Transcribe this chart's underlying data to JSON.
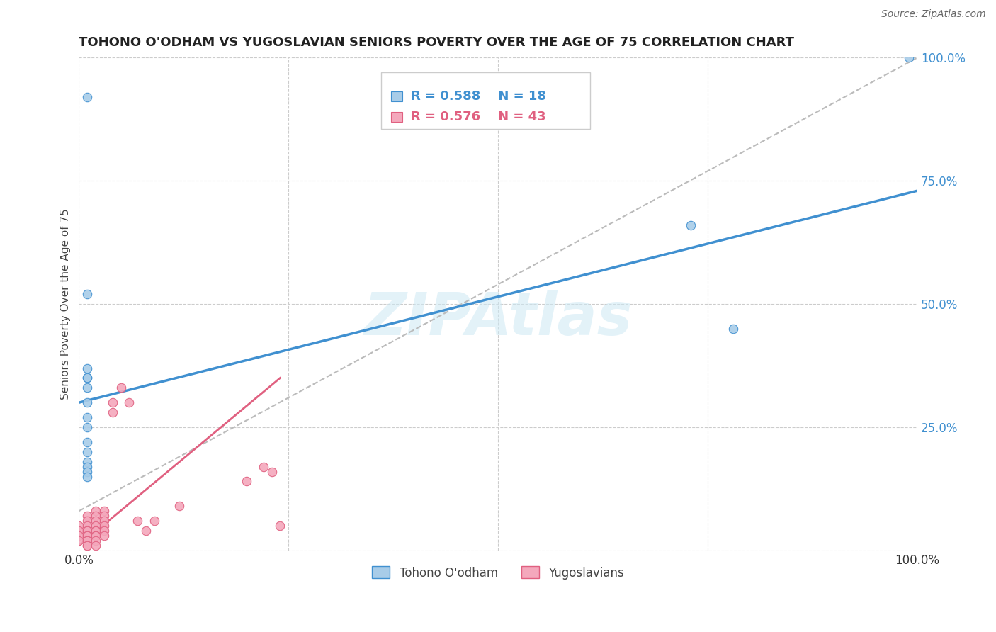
{
  "title": "TOHONO O'ODHAM VS YUGOSLAVIAN SENIORS POVERTY OVER THE AGE OF 75 CORRELATION CHART",
  "source": "Source: ZipAtlas.com",
  "ylabel": "Seniors Poverty Over the Age of 75",
  "watermark": "ZIPAtlas",
  "legend_blue_R": "R = 0.588",
  "legend_blue_N": "N = 18",
  "legend_pink_R": "R = 0.576",
  "legend_pink_N": "N = 43",
  "legend_blue_label": "Tohono O'odham",
  "legend_pink_label": "Yugoslavians",
  "xlim": [
    0,
    1
  ],
  "ylim": [
    0,
    1
  ],
  "blue_color": "#a8cce8",
  "pink_color": "#f4a8bc",
  "trendline_blue_color": "#4090d0",
  "trendline_pink_color": "#e06080",
  "trendline_diagonal_color": "#bbbbbb",
  "blue_points": [
    [
      0.01,
      0.92
    ],
    [
      0.01,
      0.52
    ],
    [
      0.01,
      0.37
    ],
    [
      0.01,
      0.35
    ],
    [
      0.01,
      0.33
    ],
    [
      0.01,
      0.3
    ],
    [
      0.01,
      0.27
    ],
    [
      0.01,
      0.25
    ],
    [
      0.01,
      0.22
    ],
    [
      0.01,
      0.2
    ],
    [
      0.01,
      0.18
    ],
    [
      0.01,
      0.17
    ],
    [
      0.01,
      0.16
    ],
    [
      0.01,
      0.15
    ],
    [
      0.01,
      0.35
    ],
    [
      0.73,
      0.66
    ],
    [
      0.78,
      0.45
    ],
    [
      0.99,
      1.0
    ]
  ],
  "pink_points": [
    [
      0.0,
      0.05
    ],
    [
      0.0,
      0.04
    ],
    [
      0.0,
      0.03
    ],
    [
      0.0,
      0.02
    ],
    [
      0.01,
      0.07
    ],
    [
      0.01,
      0.06
    ],
    [
      0.01,
      0.05
    ],
    [
      0.01,
      0.04
    ],
    [
      0.01,
      0.04
    ],
    [
      0.01,
      0.03
    ],
    [
      0.01,
      0.03
    ],
    [
      0.01,
      0.02
    ],
    [
      0.01,
      0.02
    ],
    [
      0.01,
      0.01
    ],
    [
      0.01,
      0.01
    ],
    [
      0.02,
      0.08
    ],
    [
      0.02,
      0.07
    ],
    [
      0.02,
      0.06
    ],
    [
      0.02,
      0.05
    ],
    [
      0.02,
      0.04
    ],
    [
      0.02,
      0.04
    ],
    [
      0.02,
      0.03
    ],
    [
      0.02,
      0.03
    ],
    [
      0.02,
      0.02
    ],
    [
      0.02,
      0.01
    ],
    [
      0.03,
      0.08
    ],
    [
      0.03,
      0.07
    ],
    [
      0.03,
      0.06
    ],
    [
      0.03,
      0.05
    ],
    [
      0.03,
      0.04
    ],
    [
      0.03,
      0.03
    ],
    [
      0.04,
      0.3
    ],
    [
      0.04,
      0.28
    ],
    [
      0.05,
      0.33
    ],
    [
      0.06,
      0.3
    ],
    [
      0.07,
      0.06
    ],
    [
      0.08,
      0.04
    ],
    [
      0.09,
      0.06
    ],
    [
      0.12,
      0.09
    ],
    [
      0.2,
      0.14
    ],
    [
      0.22,
      0.17
    ],
    [
      0.23,
      0.16
    ],
    [
      0.24,
      0.05
    ]
  ],
  "blue_trendline": [
    [
      0.0,
      0.3
    ],
    [
      1.0,
      0.73
    ]
  ],
  "pink_trendline": [
    [
      0.0,
      0.01
    ],
    [
      0.24,
      0.35
    ]
  ],
  "diagonal_trendline": [
    [
      0.0,
      0.08
    ],
    [
      1.0,
      1.0
    ]
  ]
}
